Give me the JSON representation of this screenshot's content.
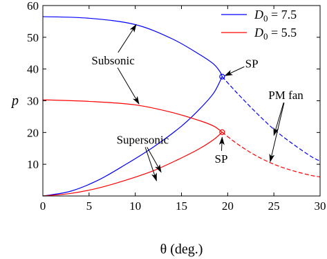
{
  "chart_data": {
    "type": "line",
    "xlabel": "θ (deg.)",
    "ylabel": "p",
    "xlim": [
      0,
      30
    ],
    "ylim": [
      0,
      60
    ],
    "xticks": [
      "0",
      "5",
      "10",
      "15",
      "20",
      "25",
      "30"
    ],
    "yticks": [
      "10",
      "20",
      "30",
      "40",
      "50",
      "60"
    ],
    "grid": false,
    "legend_position": "top-right",
    "legend": [
      {
        "prefix": "D",
        "sub": "0",
        "suffix": " = 7.5",
        "color": "#0000ff"
      },
      {
        "prefix": "D",
        "sub": "0",
        "suffix": " = 5.5",
        "color": "#ff0000"
      }
    ],
    "series": [
      {
        "color": "#0000ff",
        "subsonic": {
          "x": [
            0,
            5,
            10,
            14,
            17,
            18.5,
            19.2,
            19.4
          ],
          "y": [
            56.5,
            56,
            54,
            49.5,
            44.5,
            41.5,
            39,
            37.6
          ]
        },
        "supersonic": {
          "x": [
            0,
            3,
            6,
            9,
            12,
            15,
            17,
            18.5,
            19.4
          ],
          "y": [
            0,
            1.5,
            5,
            10,
            15.5,
            22,
            27.5,
            32.5,
            37.6
          ]
        },
        "pm_fan": {
          "x": [
            19.4,
            21,
            23,
            25,
            27,
            29,
            30
          ],
          "y": [
            37.6,
            32.5,
            26.5,
            21,
            16.5,
            12.5,
            11
          ]
        },
        "sonic_point": {
          "x": 19.4,
          "y": 37.6
        }
      },
      {
        "color": "#ff0000",
        "subsonic": {
          "x": [
            0,
            5,
            10,
            14,
            17,
            18.5,
            19.4
          ],
          "y": [
            30.3,
            29.8,
            28.7,
            26.3,
            23.7,
            22,
            20.1
          ]
        },
        "supersonic": {
          "x": [
            0,
            3,
            6,
            9,
            12,
            15,
            17,
            18.5,
            19.4
          ],
          "y": [
            0,
            0.8,
            2.5,
            5,
            8,
            12,
            15,
            17.8,
            20.1
          ]
        },
        "pm_fan": {
          "x": [
            19.4,
            21,
            23,
            25,
            27,
            29,
            30
          ],
          "y": [
            20.1,
            16.5,
            12.8,
            10,
            8,
            6.5,
            6
          ]
        },
        "sonic_point": {
          "x": 19.4,
          "y": 20.1
        }
      }
    ],
    "annotations": [
      {
        "text": "Subsonic",
        "x": 7.6,
        "y": 41.5,
        "targets": [
          [
            10.1,
            54
          ],
          [
            10.4,
            29
          ]
        ]
      },
      {
        "text": "Supersonic",
        "x": 10.8,
        "y": 16.5,
        "targets": [
          [
            12.8,
            7.5
          ],
          [
            12.3,
            4.8
          ]
        ]
      },
      {
        "text": "SP",
        "x": 22.6,
        "y": 40.5,
        "targets": [
          [
            19.7,
            37.9
          ]
        ]
      },
      {
        "text": "SP",
        "x": 19.3,
        "y": 10.5,
        "targets": [
          [
            19.4,
            18.5
          ]
        ]
      },
      {
        "text": "PM fan",
        "x": 26.3,
        "y": 30.5,
        "targets": [
          [
            25,
            19.1
          ],
          [
            24.6,
            10.8
          ]
        ]
      }
    ]
  }
}
